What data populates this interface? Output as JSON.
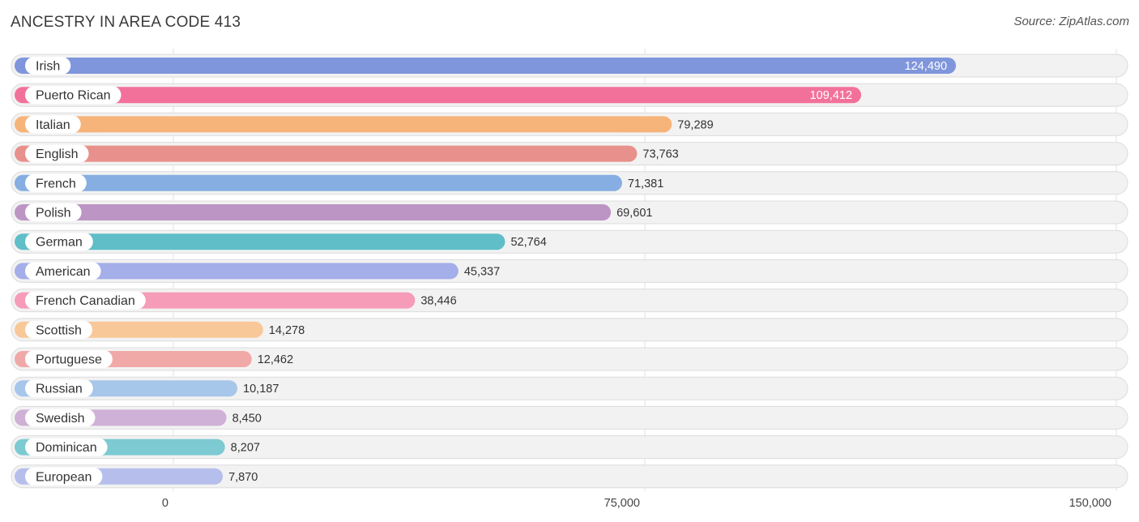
{
  "title": "ANCESTRY IN AREA CODE 413",
  "source": "Source: ZipAtlas.com",
  "chart_data": {
    "type": "bar",
    "orientation": "horizontal",
    "title": "ANCESTRY IN AREA CODE 413",
    "xlabel": "",
    "ylabel": "",
    "xlim": [
      0,
      150000
    ],
    "ticks": [
      {
        "value": 0,
        "label": "0"
      },
      {
        "value": 75000,
        "label": "75,000"
      },
      {
        "value": 150000,
        "label": "150,000"
      }
    ],
    "categories": [
      "Irish",
      "Puerto Rican",
      "Italian",
      "English",
      "French",
      "Polish",
      "German",
      "American",
      "French Canadian",
      "Scottish",
      "Portuguese",
      "Russian",
      "Swedish",
      "Dominican",
      "European"
    ],
    "values": [
      124490,
      109412,
      79289,
      73763,
      71381,
      69601,
      52764,
      45337,
      38446,
      14278,
      12462,
      10187,
      8450,
      8207,
      7870
    ],
    "value_labels": [
      "124,490",
      "109,412",
      "79,289",
      "73,763",
      "71,381",
      "69,601",
      "52,764",
      "45,337",
      "38,446",
      "14,278",
      "12,462",
      "10,187",
      "8,450",
      "8,207",
      "7,870"
    ],
    "colors": [
      "#7f96dc",
      "#f2719b",
      "#f7b47a",
      "#e8918c",
      "#86aee2",
      "#bc95c4",
      "#5fbec8",
      "#a4aee8",
      "#f69bb8",
      "#f9c898",
      "#f0a9a7",
      "#a6c6ea",
      "#cfb0d6",
      "#7dcad2",
      "#b6bfec"
    ]
  }
}
